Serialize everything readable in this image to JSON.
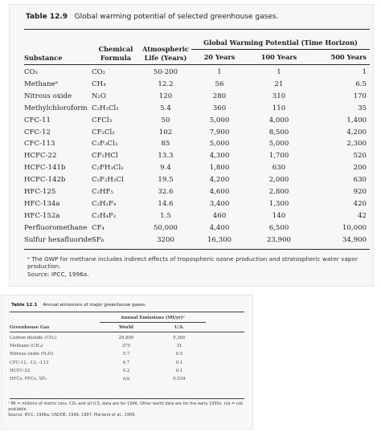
{
  "table1": {
    "label": "Table 12.9",
    "title": "Global warming potential of selected greenhouse gases.",
    "headers": {
      "substance": "Substance",
      "formula": "Chemical Formula",
      "lifetime": "Atmospheric Life (Years)",
      "gwp_group": "Global Warming Potential (Time Horizon)",
      "y20": "20 Years",
      "y100": "100 Years",
      "y500": "500 Years"
    },
    "rows": [
      {
        "substance": "CO₂",
        "formula": "CO₂",
        "life": "50-200",
        "y20": "1",
        "y100": "1",
        "y500": "1"
      },
      {
        "substance": "Methaneᵃ",
        "formula": "CH₄",
        "life": "12.2",
        "y20": "56",
        "y100": "21",
        "y500": "6.5"
      },
      {
        "substance": "Nitrous oxide",
        "formula": "N₂O",
        "life": "120",
        "y20": "280",
        "y100": "310",
        "y500": "170"
      },
      {
        "substance": "Methylchloroform",
        "formula": "C₂H₃Cl₃",
        "life": "5.4",
        "y20": "360",
        "y100": "110",
        "y500": "35"
      },
      {
        "substance": "CFC-11",
        "formula": "CFCl₃",
        "life": "50",
        "y20": "5,000",
        "y100": "4,000",
        "y500": "1,400"
      },
      {
        "substance": "CFC-12",
        "formula": "CF₂Cl₂",
        "life": "102",
        "y20": "7,900",
        "y100": "8,500",
        "y500": "4,200"
      },
      {
        "substance": "CFC-113",
        "formula": "C₂F₃Cl₃",
        "life": "85",
        "y20": "5,000",
        "y100": "5,000",
        "y500": "2,300"
      },
      {
        "substance": "HCFC-22",
        "formula": "CF₂HCl",
        "life": "13.3",
        "y20": "4,300",
        "y100": "1,700",
        "y500": "520"
      },
      {
        "substance": "HCFC-141b",
        "formula": "C₂FH₃Cl₂",
        "life": "9.4",
        "y20": "1,800",
        "y100": "630",
        "y500": "200"
      },
      {
        "substance": "HCFC-142b",
        "formula": "C₂F₂H₃Cl",
        "life": "19.5",
        "y20": "4,200",
        "y100": "2,000",
        "y500": "630"
      },
      {
        "substance": "HFC-125",
        "formula": "C₂HF₅",
        "life": "32.6",
        "y20": "4,600",
        "y100": "2,800",
        "y500": "920"
      },
      {
        "substance": "HFC-134a",
        "formula": "C₂H₂F₄",
        "life": "14.6",
        "y20": "3,400",
        "y100": "1,300",
        "y500": "420"
      },
      {
        "substance": "HFC-152a",
        "formula": "C₂H₄F₂",
        "life": "1.5",
        "y20": "460",
        "y100": "140",
        "y500": "42"
      },
      {
        "substance": "Perfluoromethane",
        "formula": "CF₄",
        "life": "50,000",
        "y20": "4,400",
        "y100": "6,500",
        "y500": "10,000"
      },
      {
        "substance": "Sulfur hexafluoride",
        "formula": "SF₆",
        "life": "3200",
        "y20": "16,300",
        "y100": "23,900",
        "y500": "34,900"
      }
    ],
    "footnote": "ᵃ The GWP for methane includes indirect effects of tropospheric ozone production and stratospheric water vapor production.",
    "source": "Source: IPCC, 1996a."
  },
  "table2": {
    "label": "Table 12.1",
    "title": "Annual emissions of major greenhouse gases.",
    "headers": {
      "gas": "Greenhouse Gas",
      "group": "Annual Emissions (Mt/yr)ᵃ",
      "world": "World",
      "us": "U.S."
    },
    "rows": [
      {
        "gas": "Carbon dioxide (CO₂)",
        "world": "29,800",
        "us": "5,300"
      },
      {
        "gas": "Methane (CH₄)",
        "world": "375",
        "us": "31"
      },
      {
        "gas": "Nitrous oxide (N₂O)",
        "world": "5.7",
        "us": "0.5"
      },
      {
        "gas": "CFC-11, -12, -113",
        "world": "0.7",
        "us": "0.1"
      },
      {
        "gas": "HCFC-22",
        "world": "0.2",
        "us": "0.1"
      },
      {
        "gas": "HFCs, PFCs, SF₆",
        "world": "n/a",
        "us": "0.034"
      }
    ],
    "footnote": "ᵃ Mt = millions of metric tons. CO₂ and all U.S. data are for 1996. Other world data are for the early 1990s. n/a = not available.",
    "source": "Source: IPCC, 1996a; USDOE, 1999, 1997; Marland et al., 1999."
  }
}
